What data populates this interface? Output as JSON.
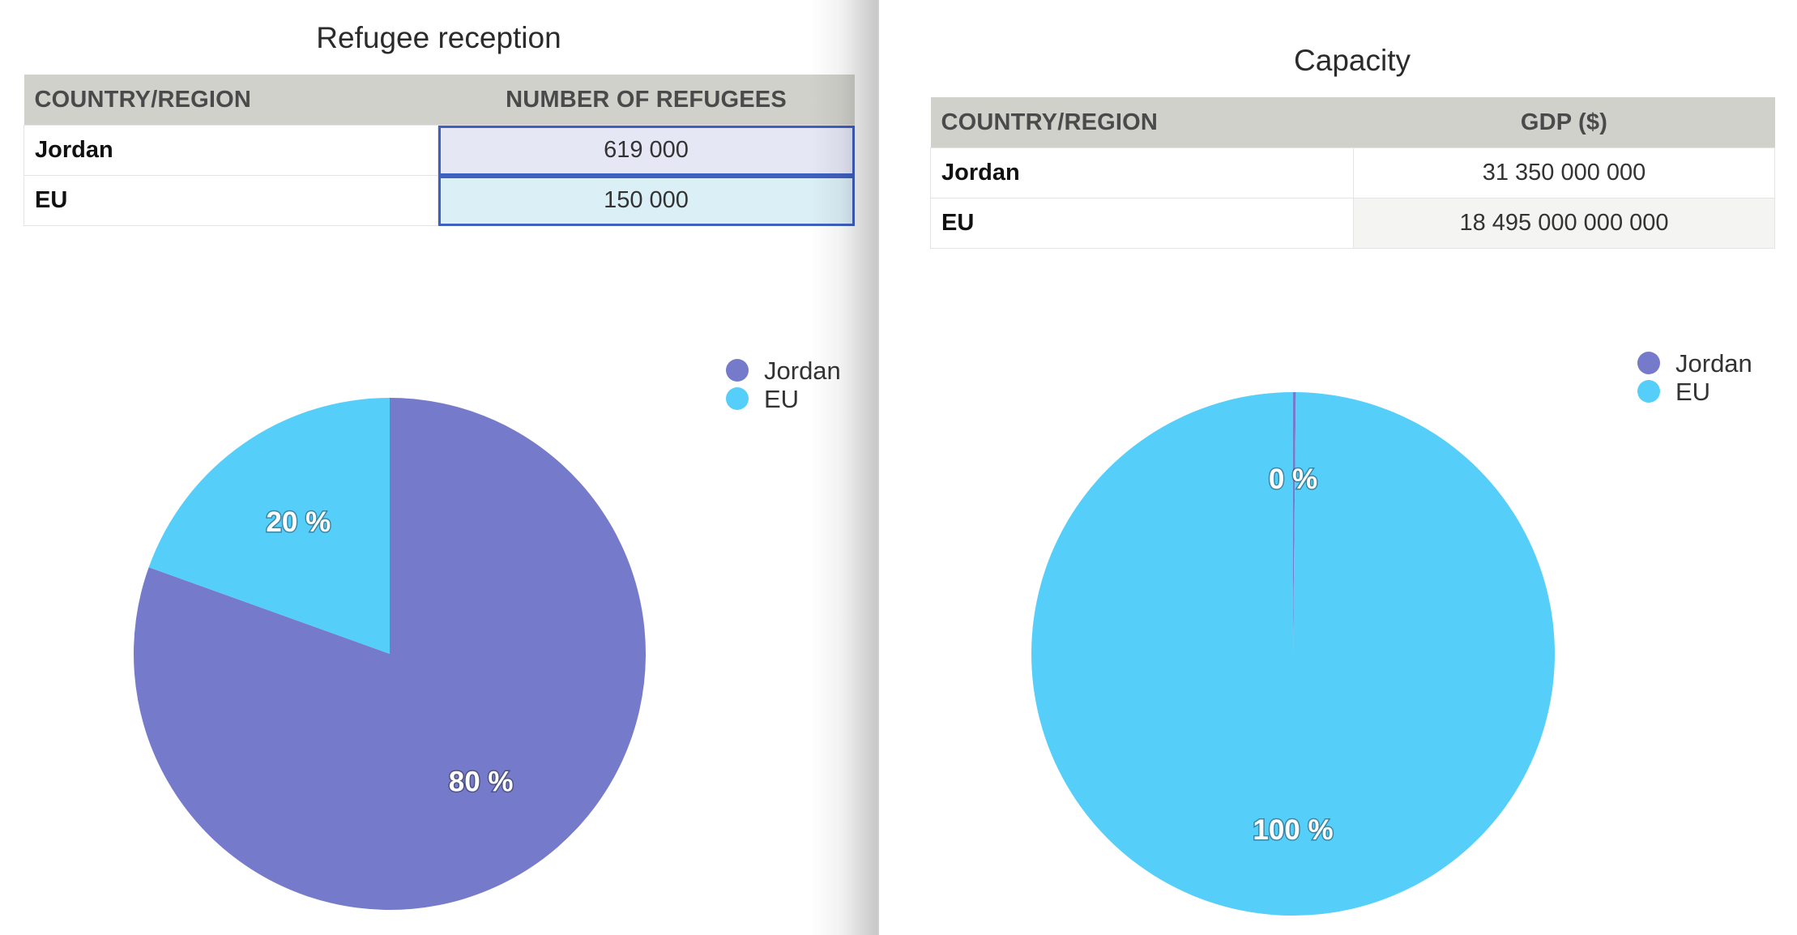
{
  "colors": {
    "jordan": "#757bca",
    "eu": "#56cefa"
  },
  "left": {
    "title": "Refugee reception",
    "table": {
      "headers": [
        "COUNTRY/REGION",
        "NUMBER OF REFUGEES"
      ],
      "rows": [
        {
          "label": "Jordan",
          "value": "619 000"
        },
        {
          "label": "EU",
          "value": "150 000"
        }
      ]
    }
  },
  "right": {
    "title": "Capacity",
    "table": {
      "headers": [
        "COUNTRY/REGION",
        "GDP ($)"
      ],
      "rows": [
        {
          "label": "Jordan",
          "value": "31 350 000 000"
        },
        {
          "label": "EU",
          "value": "18 495 000 000 000"
        }
      ]
    }
  },
  "chart_data": [
    {
      "type": "pie",
      "categories": [
        "Jordan",
        "EU"
      ],
      "values": [
        619000,
        150000
      ],
      "labels": [
        "80 %",
        "20 %"
      ],
      "legend": "top-right",
      "colors": [
        "#757bca",
        "#56cefa"
      ]
    },
    {
      "type": "pie",
      "categories": [
        "Jordan",
        "EU"
      ],
      "values": [
        31350000000,
        18495000000000
      ],
      "labels": [
        "0 %",
        "100 %"
      ],
      "legend": "top-right",
      "colors": [
        "#757bca",
        "#56cefa"
      ]
    }
  ]
}
